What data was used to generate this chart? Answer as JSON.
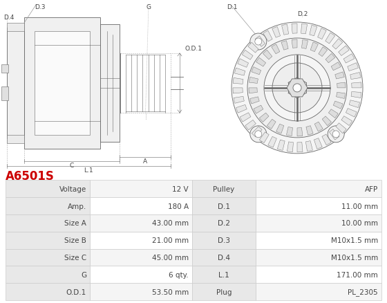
{
  "title": "A6501S",
  "title_color": "#cc0000",
  "bg_color": "#ffffff",
  "table_data": [
    [
      "Voltage",
      "12 V",
      "Pulley",
      "AFP"
    ],
    [
      "Amp.",
      "180 A",
      "D.1",
      "11.00 mm"
    ],
    [
      "Size A",
      "43.00 mm",
      "D.2",
      "10.00 mm"
    ],
    [
      "Size B",
      "21.00 mm",
      "D.3",
      "M10x1.5 mm"
    ],
    [
      "Size C",
      "45.00 mm",
      "D.4",
      "M10x1.5 mm"
    ],
    [
      "G",
      "6 qty.",
      "L.1",
      "171.00 mm"
    ],
    [
      "O.D.1",
      "53.50 mm",
      "Plug",
      "PL_2305"
    ]
  ],
  "header_bg": "#e8e8e8",
  "row_bg_odd": "#f5f5f5",
  "row_bg_even": "#ffffff",
  "border_color": "#cccccc",
  "text_color": "#444444",
  "font_size": 7.5
}
